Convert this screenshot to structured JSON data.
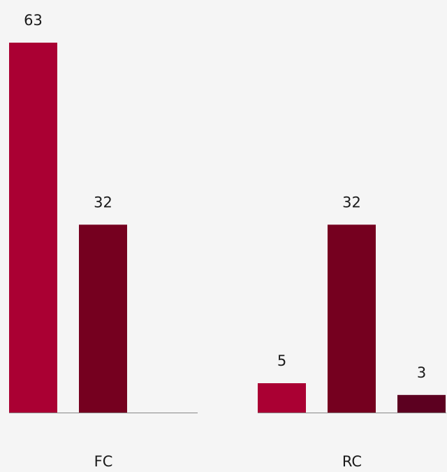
{
  "chart_data": {
    "type": "bar",
    "categories": [
      "FC",
      "RC"
    ],
    "series": [
      {
        "values": [
          63,
          5
        ],
        "color": "#aa0033"
      },
      {
        "values": [
          32,
          32
        ],
        "color": "#75001f"
      },
      {
        "values": [
          null,
          3
        ],
        "color": "#5c0020"
      }
    ],
    "data_labels": true,
    "ylim": [
      0,
      70
    ],
    "grid": false,
    "legend": "none",
    "background": "#f5f5f5",
    "baseline_color": "#888888"
  }
}
